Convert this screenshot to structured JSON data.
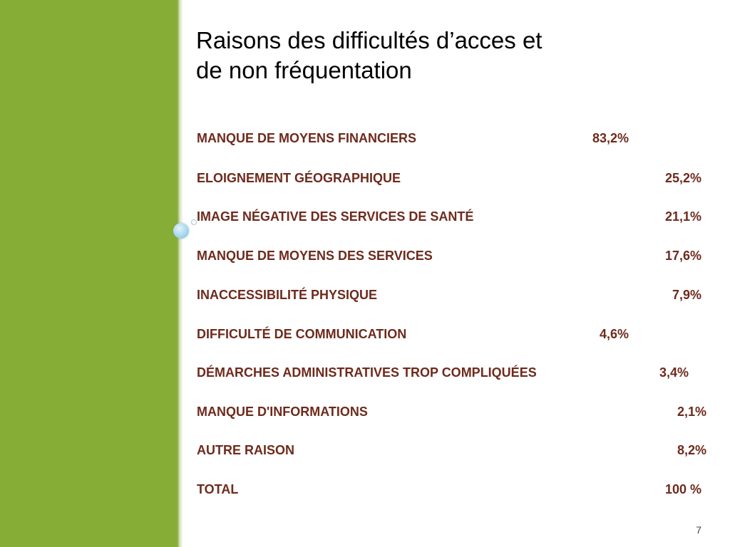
{
  "slide": {
    "title_line1": "Raisons des difficultés d’acces et",
    "title_line2": "de non fréquentation",
    "page_number": "7",
    "colors": {
      "sidebar_green": "#86ae37",
      "text_brown": "#6e2a1c",
      "accent_circle": "#a9d7ec"
    },
    "rows": [
      {
        "label": "MANQUE DE MOYENS FINANCIERS",
        "value": "83,2%"
      },
      {
        "label": "ELOIGNEMENT GÉOGRAPHIQUE",
        "value": "25,2%"
      },
      {
        "label": "IMAGE NÉGATIVE DES SERVICES DE SANTÉ",
        "value": "21,1%"
      },
      {
        "label": "MANQUE DE MOYENS DES SERVICES",
        "value": "17,6%"
      },
      {
        "label": "INACCESSIBILITÉ PHYSIQUE",
        "value": "7,9%"
      },
      {
        "label": "DIFFICULTÉ DE COMMUNICATION",
        "value": "4,6%"
      },
      {
        "label": "DÉMARCHES ADMINISTRATIVES TROP COMPLIQUÉES",
        "value": "3,4%"
      },
      {
        "label": "MANQUE D'INFORMATIONS",
        "value": "2,1%"
      },
      {
        "label": "AUTRE RAISON",
        "value": "8,2%"
      },
      {
        "label": "TOTAL",
        "value": "100 %"
      }
    ]
  }
}
